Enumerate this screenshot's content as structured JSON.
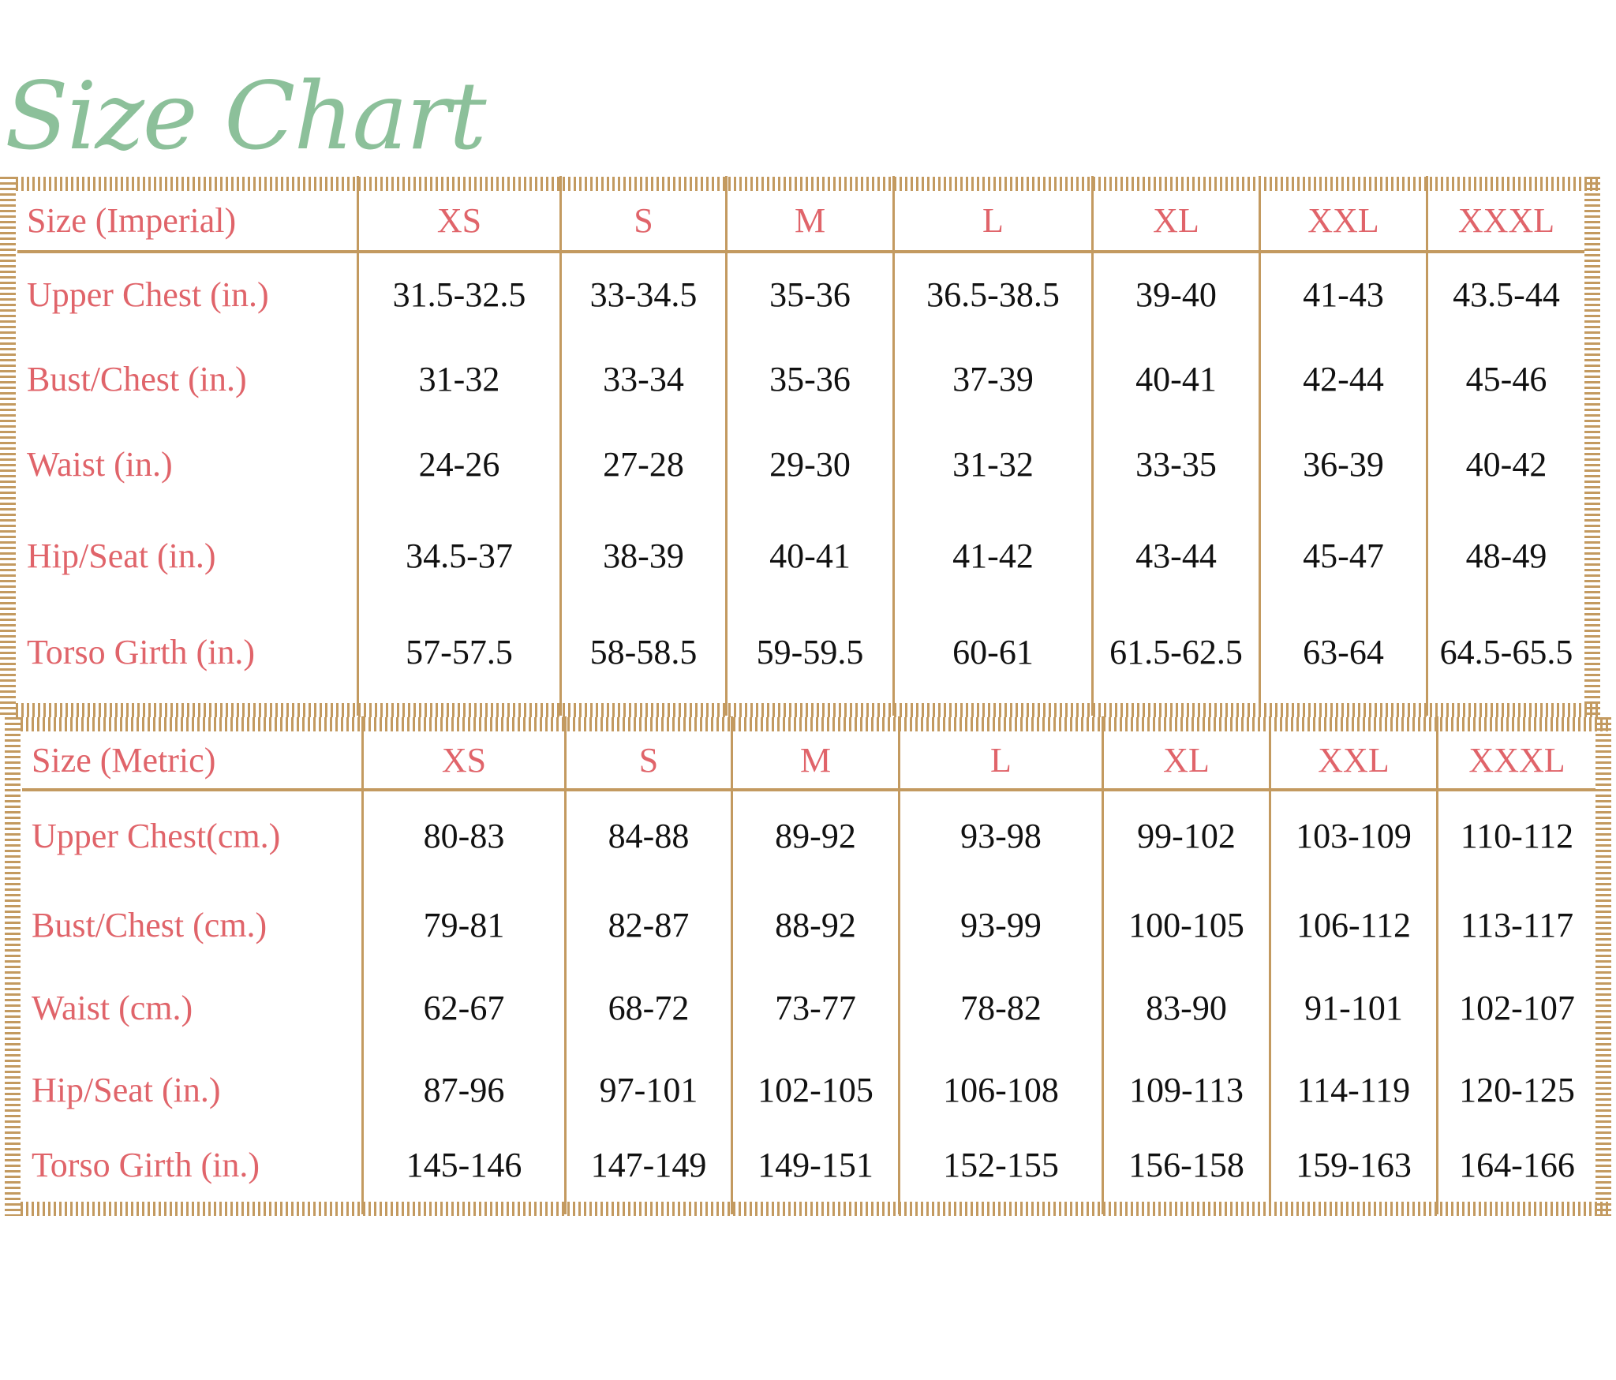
{
  "title": "Size Chart",
  "colors": {
    "title": "#8cc09a",
    "label": "#e0646a",
    "border": "#c39a60",
    "value": "#111111"
  },
  "tables": [
    {
      "header_label": "Size (Imperial)",
      "sizes": [
        "XS",
        "S",
        "M",
        "L",
        "XL",
        "XXL",
        "XXXL"
      ],
      "rows": [
        {
          "label": "Upper Chest (in.)",
          "values": [
            "31.5-32.5",
            "33-34.5",
            "35-36",
            "36.5-38.5",
            "39-40",
            "41-43",
            "43.5-44"
          ]
        },
        {
          "label": "Bust/Chest (in.)",
          "values": [
            "31-32",
            "33-34",
            "35-36",
            "37-39",
            "40-41",
            "42-44",
            "45-46"
          ]
        },
        {
          "label": "Waist (in.)",
          "values": [
            "24-26",
            "27-28",
            "29-30",
            "31-32",
            "33-35",
            "36-39",
            "40-42"
          ]
        },
        {
          "label": "Hip/Seat (in.)",
          "values": [
            "34.5-37",
            "38-39",
            "40-41",
            "41-42",
            "43-44",
            "45-47",
            "48-49"
          ]
        },
        {
          "label": "Torso Girth (in.)",
          "values": [
            "57-57.5",
            "58-58.5",
            "59-59.5",
            "60-61",
            "61.5-62.5",
            "63-64",
            "64.5-65.5"
          ]
        }
      ]
    },
    {
      "header_label": "Size (Metric)",
      "sizes": [
        "XS",
        "S",
        "M",
        "L",
        "XL",
        "XXL",
        "XXXL"
      ],
      "rows": [
        {
          "label": "Upper Chest(cm.)",
          "values": [
            "80-83",
            "84-88",
            "89-92",
            "93-98",
            "99-102",
            "103-109",
            "110-112"
          ]
        },
        {
          "label": "Bust/Chest (cm.)",
          "values": [
            "79-81",
            "82-87",
            "88-92",
            "93-99",
            "100-105",
            "106-112",
            "113-117"
          ]
        },
        {
          "label": "Waist (cm.)",
          "values": [
            "62-67",
            "68-72",
            "73-77",
            "78-82",
            "83-90",
            "91-101",
            "102-107"
          ]
        },
        {
          "label": "Hip/Seat (in.)",
          "values": [
            "87-96",
            "97-101",
            "102-105",
            "106-108",
            "109-113",
            "114-119",
            "120-125"
          ]
        },
        {
          "label": "Torso Girth (in.)",
          "values": [
            "145-146",
            "147-149",
            "149-151",
            "152-155",
            "156-158",
            "159-163",
            "164-166"
          ]
        }
      ]
    }
  ]
}
